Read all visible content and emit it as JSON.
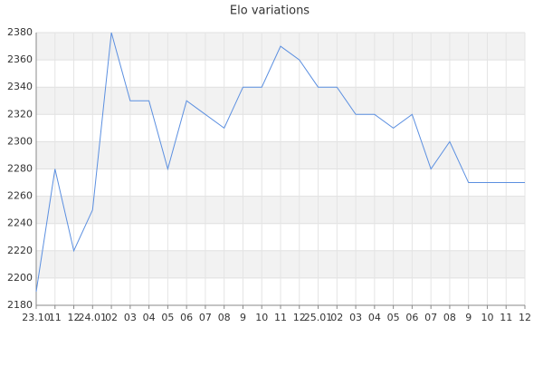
{
  "chart_data": {
    "type": "line",
    "title": "Elo variations",
    "categories": [
      "23.10",
      "11",
      "12",
      "24.01",
      "02",
      "03",
      "04",
      "05",
      "06",
      "07",
      "08",
      "9",
      "10",
      "11",
      "12",
      "25.01",
      "02",
      "03",
      "04",
      "05",
      "06",
      "07",
      "08",
      "9",
      "10",
      "11",
      "12"
    ],
    "series": [
      {
        "name": "Elo",
        "color": "#5b8fe0",
        "values": [
          2190,
          2280,
          2220,
          2250,
          2380,
          2330,
          2330,
          2280,
          2330,
          2320,
          2310,
          2340,
          2340,
          2370,
          2360,
          2340,
          2340,
          2320,
          2320,
          2310,
          2320,
          2280,
          2300,
          2270,
          2270,
          2270,
          2270
        ]
      }
    ],
    "ylim": [
      2180,
      2380
    ],
    "yticks": [
      2180,
      2200,
      2220,
      2240,
      2260,
      2280,
      2300,
      2320,
      2340,
      2360,
      2380
    ],
    "grid": true
  }
}
